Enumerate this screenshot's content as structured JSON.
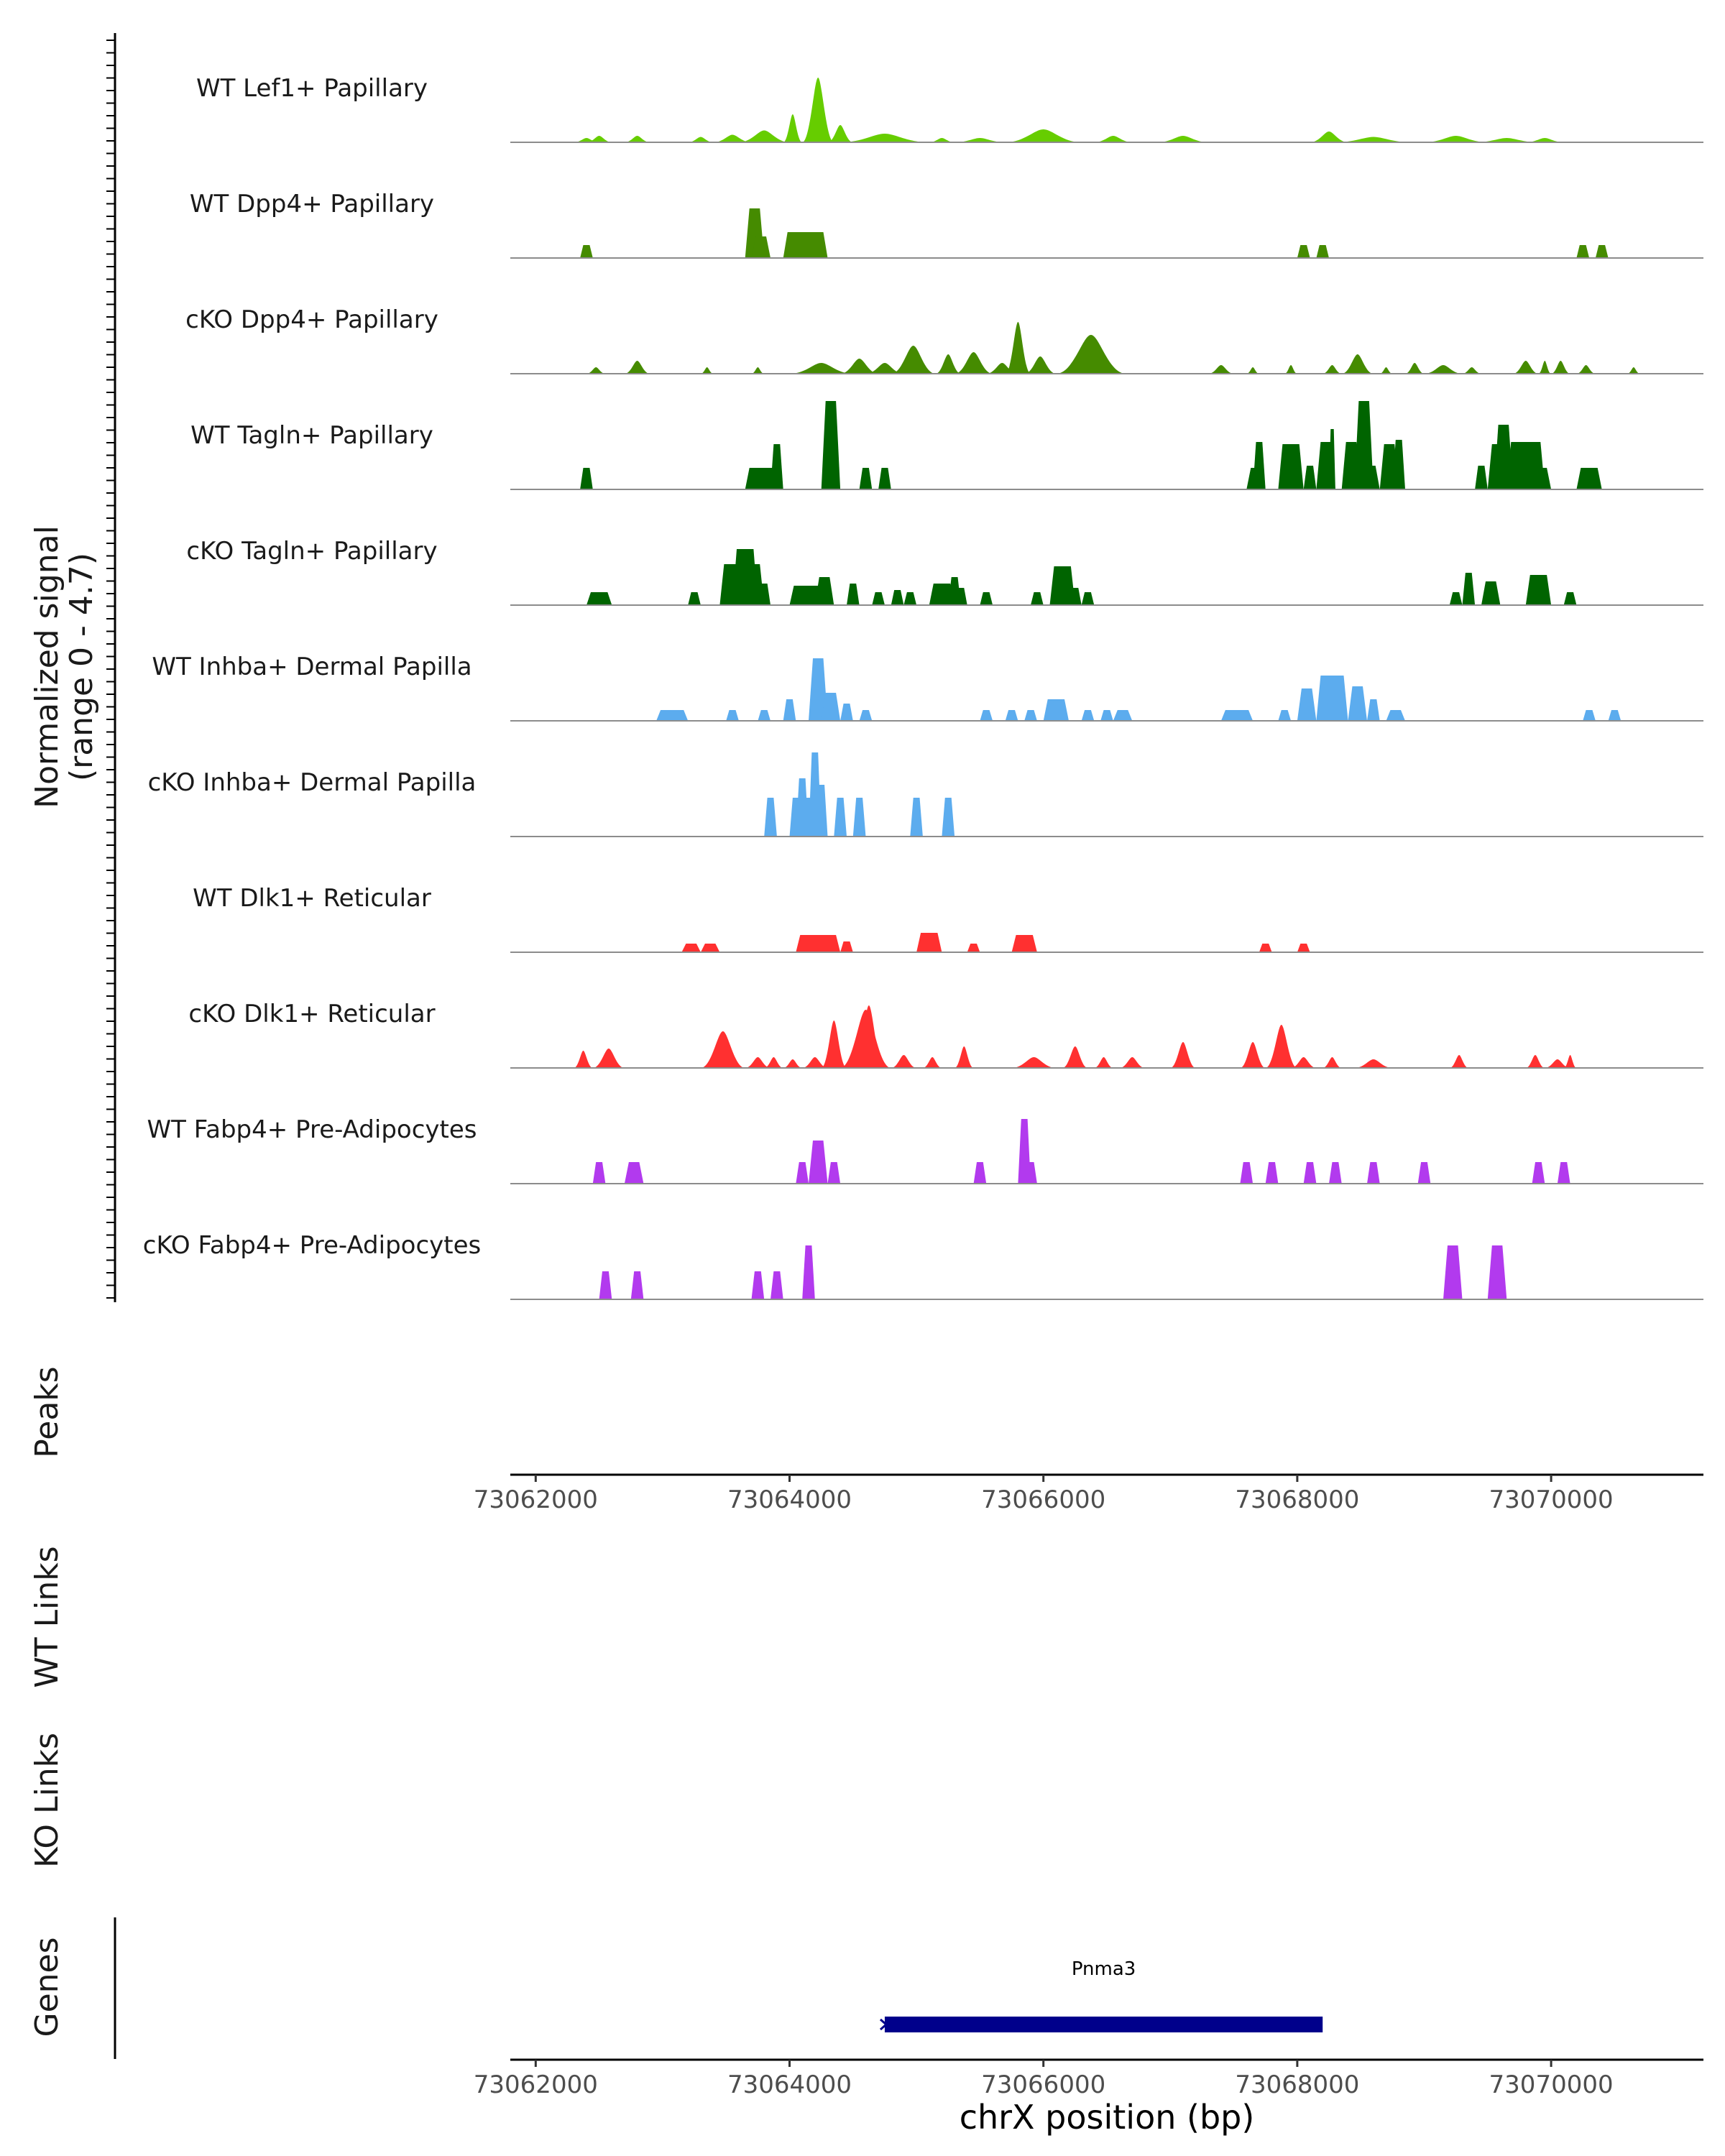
{
  "chart_data": {
    "type": "area",
    "title": "",
    "ylabel_line1": "Normalized signal",
    "ylabel_line2": "(range 0 - 4.7)",
    "ylim": [
      0,
      4.7
    ],
    "xlabel": "chrX position (bp)",
    "xlim": [
      73061800,
      73071200
    ],
    "xticks": [
      73062000,
      73064000,
      73066000,
      73068000,
      73070000
    ],
    "xtick_labels": [
      "73062000",
      "73064000",
      "73066000",
      "73068000",
      "73070000"
    ],
    "tracks": [
      {
        "name": "WT Lef1+ Papillary",
        "color": "#66CD00",
        "style": "smooth",
        "peaks": [
          [
            73062300,
            73062500,
            0.2
          ],
          [
            73062400,
            73062600,
            0.3
          ],
          [
            73062700,
            73062900,
            0.3
          ],
          [
            73063200,
            73063400,
            0.25
          ],
          [
            73063400,
            73063700,
            0.35
          ],
          [
            73063600,
            73064000,
            0.55
          ],
          [
            73063950,
            73064100,
            1.3
          ],
          [
            73064100,
            73064350,
            3.0
          ],
          [
            73064300,
            73064500,
            0.8
          ],
          [
            73064400,
            73065100,
            0.4
          ],
          [
            73065100,
            73065300,
            0.2
          ],
          [
            73065300,
            73065700,
            0.2
          ],
          [
            73065700,
            73066300,
            0.6
          ],
          [
            73066400,
            73066700,
            0.3
          ],
          [
            73066900,
            73067300,
            0.3
          ],
          [
            73068100,
            73068400,
            0.5
          ],
          [
            73068300,
            73068900,
            0.25
          ],
          [
            73069000,
            73069500,
            0.3
          ],
          [
            73069400,
            73069900,
            0.2
          ],
          [
            73069800,
            73070100,
            0.2
          ]
        ]
      },
      {
        "name": "WT Dpp4+ Papillary",
        "color": "#458B00",
        "style": "block",
        "peaks": [
          [
            73062350,
            73062450,
            0.6
          ],
          [
            73063650,
            73063800,
            2.3
          ],
          [
            73063700,
            73063850,
            1.0
          ],
          [
            73063950,
            73064300,
            1.2
          ],
          [
            73068000,
            73068100,
            0.6
          ],
          [
            73068150,
            73068250,
            0.6
          ],
          [
            73070200,
            73070300,
            0.6
          ],
          [
            73070350,
            73070450,
            0.6
          ]
        ]
      },
      {
        "name": "cKO Dpp4+ Papillary",
        "color": "#458B00",
        "style": "smooth",
        "peaks": [
          [
            73062400,
            73062550,
            0.3
          ],
          [
            73062700,
            73062900,
            0.6
          ],
          [
            73063300,
            73063400,
            0.3
          ],
          [
            73063700,
            73063800,
            0.3
          ],
          [
            73064000,
            73064500,
            0.5
          ],
          [
            73064400,
            73064700,
            0.7
          ],
          [
            73064600,
            73064900,
            0.5
          ],
          [
            73064800,
            73065150,
            1.3
          ],
          [
            73065150,
            73065350,
            0.9
          ],
          [
            73065300,
            73065600,
            1.0
          ],
          [
            73065550,
            73065800,
            0.5
          ],
          [
            73065700,
            73065900,
            2.4
          ],
          [
            73065850,
            73066100,
            0.8
          ],
          [
            73066100,
            73066650,
            1.8
          ],
          [
            73067300,
            73067500,
            0.4
          ],
          [
            73067600,
            73067700,
            0.3
          ],
          [
            73067900,
            73068000,
            0.4
          ],
          [
            73068200,
            73068350,
            0.4
          ],
          [
            73068350,
            73068600,
            0.9
          ],
          [
            73068650,
            73068750,
            0.3
          ],
          [
            73068850,
            73069000,
            0.5
          ],
          [
            73069000,
            73069300,
            0.4
          ],
          [
            73069300,
            73069450,
            0.3
          ],
          [
            73069700,
            73069900,
            0.6
          ],
          [
            73069900,
            73070000,
            0.6
          ],
          [
            73070000,
            73070150,
            0.6
          ],
          [
            73070200,
            73070350,
            0.4
          ],
          [
            73070600,
            73070700,
            0.3
          ]
        ]
      },
      {
        "name": "WT Tagln+ Papillary",
        "color": "#006400",
        "style": "block",
        "peaks": [
          [
            73062350,
            73062450,
            1.0
          ],
          [
            73063650,
            73063950,
            1.0
          ],
          [
            73063850,
            73063950,
            2.1
          ],
          [
            73064250,
            73064400,
            4.1
          ],
          [
            73064550,
            73064650,
            1.0
          ],
          [
            73064700,
            73064800,
            1.0
          ],
          [
            73067600,
            73067750,
            1.0
          ],
          [
            73067650,
            73067750,
            2.2
          ],
          [
            73067850,
            73068050,
            2.1
          ],
          [
            73068050,
            73068150,
            1.1
          ],
          [
            73068150,
            73068300,
            2.2
          ],
          [
            73068250,
            73068300,
            2.8
          ],
          [
            73068350,
            73068500,
            2.2
          ],
          [
            73068450,
            73068600,
            4.1
          ],
          [
            73068500,
            73068650,
            1.1
          ],
          [
            73068650,
            73068800,
            2.1
          ],
          [
            73068750,
            73068850,
            2.3
          ],
          [
            73069400,
            73069500,
            1.1
          ],
          [
            73069500,
            73069650,
            2.1
          ],
          [
            73069550,
            73069700,
            3.0
          ],
          [
            73069650,
            73069950,
            2.2
          ],
          [
            73069850,
            73070000,
            1.0
          ],
          [
            73070200,
            73070400,
            1.0
          ]
        ]
      },
      {
        "name": "cKO Tagln+ Papillary",
        "color": "#006400",
        "style": "block",
        "peaks": [
          [
            73062400,
            73062600,
            0.6
          ],
          [
            73063200,
            73063300,
            0.6
          ],
          [
            73063450,
            73063800,
            1.9
          ],
          [
            73063550,
            73063750,
            2.6
          ],
          [
            73063750,
            73063850,
            1.0
          ],
          [
            73064000,
            73064300,
            0.9
          ],
          [
            73064200,
            73064350,
            1.3
          ],
          [
            73064450,
            73064550,
            1.0
          ],
          [
            73064650,
            73064750,
            0.6
          ],
          [
            73064800,
            73064900,
            0.7
          ],
          [
            73064900,
            73065000,
            0.6
          ],
          [
            73065100,
            73065300,
            1.0
          ],
          [
            73065250,
            73065350,
            1.3
          ],
          [
            73065300,
            73065400,
            0.8
          ],
          [
            73065500,
            73065600,
            0.6
          ],
          [
            73065900,
            73066000,
            0.6
          ],
          [
            73066050,
            73066250,
            1.8
          ],
          [
            73066200,
            73066300,
            0.8
          ],
          [
            73066300,
            73066400,
            0.6
          ],
          [
            73069200,
            73069300,
            0.6
          ],
          [
            73069300,
            73069400,
            1.5
          ],
          [
            73069450,
            73069600,
            1.1
          ],
          [
            73069800,
            73070000,
            1.4
          ],
          [
            73070100,
            73070200,
            0.6
          ]
        ]
      },
      {
        "name": "WT Inhba+ Dermal Papilla",
        "color": "#5CACEE",
        "style": "block",
        "peaks": [
          [
            73062950,
            73063200,
            0.5
          ],
          [
            73063500,
            73063600,
            0.5
          ],
          [
            73063750,
            73063850,
            0.5
          ],
          [
            73063950,
            73064050,
            1.0
          ],
          [
            73064150,
            73064300,
            2.9
          ],
          [
            73064250,
            73064400,
            1.3
          ],
          [
            73064400,
            73064500,
            0.8
          ],
          [
            73064550,
            73064650,
            0.5
          ],
          [
            73065500,
            73065600,
            0.5
          ],
          [
            73065700,
            73065800,
            0.5
          ],
          [
            73065850,
            73065950,
            0.5
          ],
          [
            73066000,
            73066200,
            1.0
          ],
          [
            73066300,
            73066400,
            0.5
          ],
          [
            73066450,
            73066550,
            0.5
          ],
          [
            73066550,
            73066700,
            0.5
          ],
          [
            73067400,
            73067650,
            0.5
          ],
          [
            73067850,
            73067950,
            0.5
          ],
          [
            73068000,
            73068150,
            1.5
          ],
          [
            73068150,
            73068400,
            2.1
          ],
          [
            73068400,
            73068550,
            1.6
          ],
          [
            73068550,
            73068650,
            1.0
          ],
          [
            73068700,
            73068850,
            0.5
          ],
          [
            73070250,
            73070350,
            0.5
          ],
          [
            73070450,
            73070550,
            0.5
          ]
        ]
      },
      {
        "name": "cKO Inhba+ Dermal Papilla",
        "color": "#5CACEE",
        "style": "block",
        "peaks": [
          [
            73063800,
            73063900,
            1.8
          ],
          [
            73064000,
            73064100,
            1.8
          ],
          [
            73064050,
            73064150,
            2.7
          ],
          [
            73064100,
            73064200,
            1.8
          ],
          [
            73064150,
            73064250,
            3.9
          ],
          [
            73064200,
            73064300,
            2.4
          ],
          [
            73064350,
            73064450,
            1.8
          ],
          [
            73064500,
            73064600,
            1.8
          ],
          [
            73064950,
            73065050,
            1.8
          ],
          [
            73065200,
            73065300,
            1.8
          ]
        ]
      },
      {
        "name": "WT Dlk1+ Reticular",
        "color": "#FF3030",
        "style": "block",
        "peaks": [
          [
            73063150,
            73063300,
            0.4
          ],
          [
            73063300,
            73063450,
            0.4
          ],
          [
            73064050,
            73064400,
            0.8
          ],
          [
            73064400,
            73064500,
            0.5
          ],
          [
            73065000,
            73065200,
            0.9
          ],
          [
            73065400,
            73065500,
            0.4
          ],
          [
            73065750,
            73065950,
            0.8
          ],
          [
            73067700,
            73067800,
            0.4
          ],
          [
            73068000,
            73068100,
            0.4
          ]
        ]
      },
      {
        "name": "cKO Dlk1+ Reticular",
        "color": "#FF3030",
        "style": "smooth",
        "peaks": [
          [
            73062300,
            73062450,
            0.8
          ],
          [
            73062450,
            73062700,
            0.9
          ],
          [
            73063300,
            73063650,
            1.7
          ],
          [
            73063650,
            73063850,
            0.5
          ],
          [
            73063800,
            73063950,
            0.5
          ],
          [
            73063950,
            73064100,
            0.4
          ],
          [
            73064100,
            73064300,
            0.5
          ],
          [
            73064250,
            73064450,
            2.2
          ],
          [
            73064400,
            73064800,
            2.7
          ],
          [
            73064500,
            73064750,
            2.9
          ],
          [
            73064800,
            73065000,
            0.6
          ],
          [
            73065050,
            73065200,
            0.5
          ],
          [
            73065300,
            73065450,
            1.0
          ],
          [
            73065750,
            73066100,
            0.5
          ],
          [
            73066150,
            73066350,
            1.0
          ],
          [
            73066400,
            73066550,
            0.5
          ],
          [
            73066600,
            73066800,
            0.5
          ],
          [
            73067000,
            73067200,
            1.2
          ],
          [
            73067550,
            73067750,
            1.2
          ],
          [
            73067750,
            73068000,
            2.0
          ],
          [
            73067950,
            73068150,
            0.5
          ],
          [
            73068200,
            73068350,
            0.5
          ],
          [
            73068450,
            73068750,
            0.4
          ],
          [
            73069200,
            73069350,
            0.6
          ],
          [
            73069800,
            73069950,
            0.6
          ],
          [
            73069950,
            73070150,
            0.4
          ],
          [
            73070100,
            73070200,
            0.6
          ]
        ]
      },
      {
        "name": "WT Fabp4+ Pre-Adipocytes",
        "color": "#B23AEE",
        "style": "block",
        "peaks": [
          [
            73062450,
            73062550,
            1.0
          ],
          [
            73062700,
            73062850,
            1.0
          ],
          [
            73064050,
            73064150,
            1.0
          ],
          [
            73064150,
            73064300,
            2.0
          ],
          [
            73064300,
            73064400,
            1.0
          ],
          [
            73065450,
            73065550,
            1.0
          ],
          [
            73065800,
            73065900,
            3.0
          ],
          [
            73065850,
            73065950,
            1.0
          ],
          [
            73067550,
            73067650,
            1.0
          ],
          [
            73067750,
            73067850,
            1.0
          ],
          [
            73068050,
            73068150,
            1.0
          ],
          [
            73068250,
            73068350,
            1.0
          ],
          [
            73068550,
            73068650,
            1.0
          ],
          [
            73068950,
            73069050,
            1.0
          ],
          [
            73069850,
            73069950,
            1.0
          ],
          [
            73070050,
            73070150,
            1.0
          ]
        ]
      },
      {
        "name": "cKO Fabp4+ Pre-Adipocytes",
        "color": "#B23AEE",
        "style": "block",
        "peaks": [
          [
            73062500,
            73062600,
            1.3
          ],
          [
            73062750,
            73062850,
            1.3
          ],
          [
            73063700,
            73063800,
            1.3
          ],
          [
            73063850,
            73063950,
            1.3
          ],
          [
            73064100,
            73064200,
            2.5
          ],
          [
            73069150,
            73069300,
            2.5
          ],
          [
            73069500,
            73069650,
            2.5
          ]
        ]
      }
    ],
    "panels": {
      "peaks": "Peaks",
      "wt_links": "WT Links",
      "ko_links": "KO Links",
      "genes": "Genes"
    },
    "genes": [
      {
        "name": "Pnma3",
        "start": 73064750,
        "end": 73068200,
        "strand": "+"
      }
    ]
  }
}
